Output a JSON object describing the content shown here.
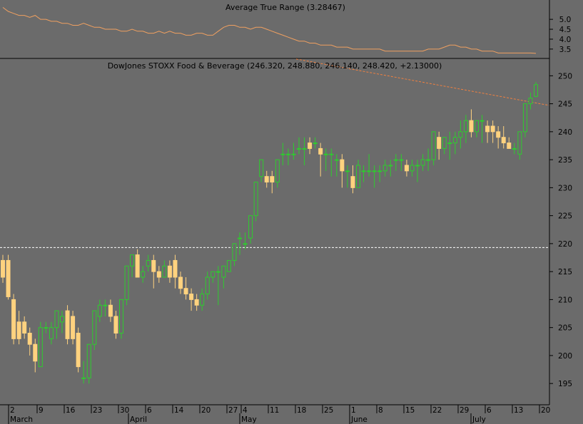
{
  "indicator": {
    "title": "Average True Range (3.28467)",
    "yticks": [
      3.5,
      4.0,
      4.5,
      5.0
    ],
    "ylim": [
      3.1,
      5.4
    ],
    "line_color": "#f0a060"
  },
  "main": {
    "title": "DowJones STOXX Food & Beverage (246.320, 248.880, 246.140, 248.420, +2.13000)",
    "yticks": [
      195,
      200,
      205,
      210,
      215,
      220,
      225,
      230,
      235,
      240,
      245,
      250
    ],
    "ylim": [
      191.2,
      253.1
    ],
    "up_color": "#2ecc2e",
    "down_color": "#ffd27f",
    "background": "#6b6b6b",
    "hline_value": 219.3,
    "trendline": {
      "start_value": 253.0,
      "end_value": 244.7,
      "color": "#f08040"
    }
  },
  "xaxis": {
    "day_labels": [
      "2",
      "9",
      "16",
      "23",
      "30",
      "6",
      "14",
      "20",
      "27",
      "4",
      "11",
      "18",
      "25",
      "1",
      "8",
      "15",
      "22",
      "29",
      "6",
      "13",
      "20"
    ],
    "month_labels": [
      "March",
      "April",
      "May",
      "June",
      "July"
    ]
  },
  "chart_data": {
    "type": "candlestick",
    "title": "DowJones STOXX Food & Beverage (246.320, 248.880, 246.140, 248.420, +2.13000)",
    "ylim": [
      191.2,
      253.1
    ],
    "candles": [
      [
        217,
        218,
        213,
        214
      ],
      [
        217,
        218,
        210,
        210.5
      ],
      [
        210,
        211,
        202,
        203
      ],
      [
        206,
        208,
        202,
        203
      ],
      [
        206,
        207,
        203,
        204
      ],
      [
        204,
        205,
        200,
        202
      ],
      [
        202,
        203,
        197,
        199
      ],
      [
        198,
        206,
        198,
        205
      ],
      [
        205,
        206,
        204,
        205
      ],
      [
        203,
        206,
        202,
        205
      ],
      [
        205,
        208,
        203,
        208
      ],
      [
        206,
        208,
        204,
        207
      ],
      [
        208,
        209,
        202,
        203
      ],
      [
        207,
        208,
        202,
        203
      ],
      [
        204,
        205,
        197,
        198
      ],
      [
        196,
        199,
        195,
        196
      ],
      [
        196,
        202,
        195,
        202
      ],
      [
        202,
        208,
        201,
        208
      ],
      [
        207,
        210,
        206,
        209
      ],
      [
        209,
        210,
        207,
        209
      ],
      [
        209,
        210,
        206,
        207
      ],
      [
        207,
        208,
        203,
        204
      ],
      [
        204,
        210,
        203,
        210
      ],
      [
        210,
        216,
        209,
        216
      ],
      [
        216,
        218,
        214,
        218
      ],
      [
        218,
        219,
        214,
        214
      ],
      [
        214,
        216,
        213,
        215
      ],
      [
        216,
        218,
        215,
        217
      ],
      [
        217,
        218,
        212,
        215
      ],
      [
        215,
        216,
        213,
        214
      ],
      [
        214,
        217,
        214,
        216
      ],
      [
        216,
        217,
        213,
        214
      ],
      [
        217,
        218,
        212,
        214
      ],
      [
        214,
        215,
        211,
        212
      ],
      [
        212,
        214,
        210,
        211
      ],
      [
        211,
        212,
        208,
        210
      ],
      [
        210,
        211,
        208,
        209
      ],
      [
        209,
        212,
        208,
        211
      ],
      [
        211,
        215,
        210,
        214
      ],
      [
        214,
        215,
        213,
        215
      ],
      [
        215,
        216,
        209,
        215
      ],
      [
        214,
        216,
        212,
        216
      ],
      [
        215,
        217,
        215,
        217
      ],
      [
        217,
        220,
        216,
        220
      ],
      [
        221,
        222,
        218,
        221
      ],
      [
        220,
        222,
        219,
        220
      ],
      [
        221,
        225,
        220,
        225
      ],
      [
        225,
        231,
        224,
        231
      ],
      [
        232,
        235,
        231,
        235
      ],
      [
        232,
        233,
        230,
        231
      ],
      [
        232,
        233,
        229,
        231
      ],
      [
        231,
        235,
        230,
        235
      ],
      [
        236,
        238,
        234,
        236
      ],
      [
        236,
        237,
        234,
        236
      ],
      [
        236,
        238,
        235,
        236
      ],
      [
        237,
        239,
        236,
        237
      ],
      [
        237,
        239,
        234,
        237
      ],
      [
        238,
        239,
        236,
        237
      ],
      [
        238,
        239,
        237,
        238
      ],
      [
        237,
        238,
        232,
        236
      ],
      [
        236,
        237,
        233,
        236
      ],
      [
        236,
        237,
        232,
        236
      ],
      [
        235,
        236,
        232,
        235
      ],
      [
        235,
        236,
        230,
        233
      ],
      [
        233,
        234,
        230,
        233
      ],
      [
        232,
        234,
        229,
        230
      ],
      [
        230,
        235,
        230,
        234
      ],
      [
        233,
        234,
        231,
        233
      ],
      [
        233,
        236,
        232,
        233
      ],
      [
        233,
        234,
        230,
        233
      ],
      [
        233,
        234,
        231,
        233
      ],
      [
        233,
        235,
        232,
        234
      ],
      [
        234,
        235,
        232,
        234
      ],
      [
        235,
        236,
        233,
        235
      ],
      [
        235,
        236,
        233,
        235
      ],
      [
        234,
        235,
        232,
        233
      ],
      [
        233,
        235,
        232,
        234
      ],
      [
        234,
        235,
        231,
        234
      ],
      [
        234,
        236,
        233,
        235
      ],
      [
        235,
        237,
        233,
        235
      ],
      [
        235,
        240,
        234,
        240
      ],
      [
        239,
        240,
        235,
        237
      ],
      [
        237,
        239,
        236,
        239
      ],
      [
        238,
        240,
        235,
        238
      ],
      [
        238,
        240,
        236,
        239
      ],
      [
        239,
        242,
        237,
        240
      ],
      [
        240,
        243,
        238,
        242
      ],
      [
        242,
        244,
        239,
        240
      ],
      [
        240,
        242,
        239,
        242
      ],
      [
        242,
        243,
        238,
        242
      ],
      [
        241,
        242,
        238,
        240
      ],
      [
        241,
        242,
        238,
        240
      ],
      [
        240,
        241,
        237,
        239
      ],
      [
        239,
        241,
        237,
        238
      ],
      [
        238,
        239,
        237,
        237
      ],
      [
        237,
        238,
        236,
        237
      ],
      [
        236,
        240,
        235,
        240
      ],
      [
        240,
        245,
        239,
        245
      ],
      [
        245,
        247,
        244,
        246
      ],
      [
        246.32,
        248.88,
        246.14,
        248.42
      ]
    ],
    "atr": [
      5.6,
      5.4,
      5.3,
      5.2,
      5.2,
      5.1,
      5.2,
      5.0,
      5.0,
      4.9,
      4.9,
      4.8,
      4.8,
      4.7,
      4.7,
      4.8,
      4.7,
      4.6,
      4.6,
      4.5,
      4.5,
      4.5,
      4.4,
      4.4,
      4.5,
      4.4,
      4.4,
      4.3,
      4.3,
      4.4,
      4.3,
      4.4,
      4.3,
      4.3,
      4.2,
      4.2,
      4.3,
      4.3,
      4.2,
      4.2,
      4.4,
      4.6,
      4.7,
      4.7,
      4.6,
      4.6,
      4.5,
      4.6,
      4.6,
      4.5,
      4.4,
      4.3,
      4.2,
      4.1,
      4.0,
      3.9,
      3.9,
      3.8,
      3.8,
      3.7,
      3.7,
      3.7,
      3.6,
      3.6,
      3.6,
      3.5,
      3.5,
      3.5,
      3.5,
      3.5,
      3.5,
      3.4,
      3.4,
      3.4,
      3.4,
      3.4,
      3.4,
      3.4,
      3.4,
      3.5,
      3.5,
      3.5,
      3.6,
      3.7,
      3.7,
      3.6,
      3.6,
      3.5,
      3.5,
      3.4,
      3.4,
      3.4,
      3.3,
      3.3,
      3.3,
      3.3,
      3.3,
      3.3,
      3.3,
      3.28467
    ]
  }
}
